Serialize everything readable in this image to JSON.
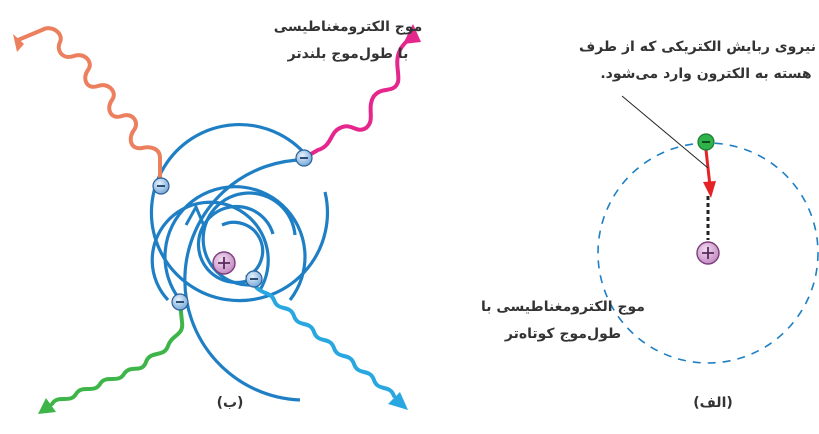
{
  "labels": {
    "longer_wave": [
      "موج الکترومغناطیسی",
      "با طول‌موج بلندتر"
    ],
    "shorter_wave": [
      "موج الکترومغناطیسی با",
      "طول‌موج کوتاه‌تر"
    ],
    "electric_force": [
      "نیروی ربایش الکتریکی که از طرف",
      "هسته به الکترون وارد می‌شود."
    ],
    "caption_b": "(ب)",
    "caption_a": "(الف)"
  },
  "colors": {
    "orbit": "#1f7fc4",
    "long_wave_orange": "#ec7f5e",
    "long_wave_magenta": "#e5268d",
    "short_wave_green": "#3db549",
    "short_wave_cyan": "#29a7e0",
    "force_arrow": "#e42327",
    "nucleus_fill": "#d9a7d8",
    "electron_fill": "#9cc3e6",
    "electron_green": "#2db34a"
  },
  "icons": {
    "nucleus": "plus-in-circle",
    "electron": "minus-in-circle"
  }
}
